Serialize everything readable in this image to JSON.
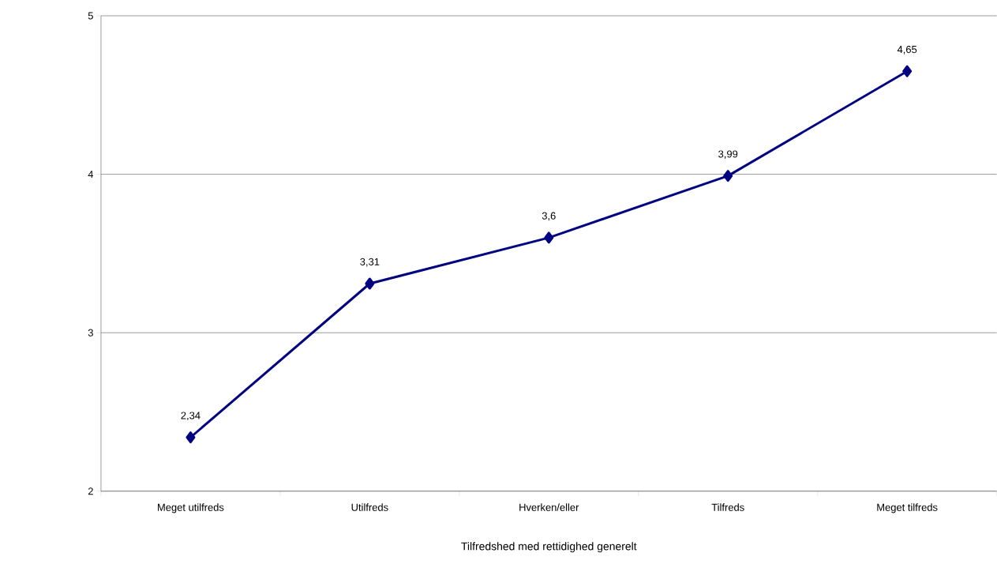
{
  "chart_data": {
    "type": "line",
    "xlabel": "Tilfredshed med rettidighed generelt",
    "categories": [
      "Meget utilfreds",
      "Utilfreds",
      "Hverken/eller",
      "Tilfreds",
      "Meget tilfreds"
    ],
    "values": [
      2.34,
      3.31,
      3.6,
      3.99,
      4.65
    ],
    "value_labels": [
      "2,34",
      "3,31",
      "3,6",
      "3,99",
      "4,65"
    ],
    "color": "#000080",
    "marker": "diamond",
    "line_style": "solid",
    "ylim": [
      2,
      5
    ],
    "yticks": [
      2,
      3,
      4,
      5
    ],
    "grid": "y"
  }
}
